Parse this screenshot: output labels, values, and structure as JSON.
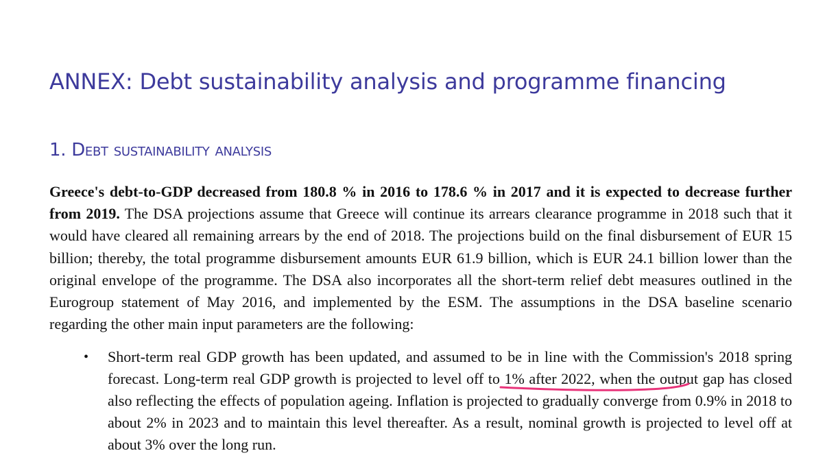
{
  "document": {
    "annex_title": "ANNEX: Debt sustainability analysis and programme financing",
    "section": {
      "number": "1.",
      "title": "Debt sustainability analysis"
    },
    "paragraph": {
      "bold_lead": "Greece's debt-to-GDP decreased from 180.8 % in 2016 to 178.6 % in 2017 and it is expected to decrease further from 2019.",
      "text": " The DSA projections assume that Greece will continue its arrears clearance programme in 2018 such that it would have cleared all remaining arrears by the end of 2018. The projections build on the final disbursement of EUR 15 billion; thereby, the total programme disbursement amounts EUR 61.9 billion, which is EUR 24.1 billion lower than the original envelope of the programme. The DSA also incorporates all the short-term relief debt measures outlined in the Eurogroup statement of May 2016, and implemented by the ESM. The assumptions in the DSA baseline scenario regarding the other main input parameters are the following:"
    },
    "bullets": [
      {
        "marker": "•",
        "text_before": "Short-term real GDP growth has been updated, and assumed to be in line with the Commission's 2018 spring forecast. Long-term real GDP growth is projected to ",
        "highlighted": "level off to 1% after 2022",
        "text_after": ", when the output gap has closed also reflecting the effects of population ageing. Inflation is projected to gradually converge from 0.9% in 2018 to about 2% in 2023 and to maintain this level thereafter. As a result, nominal growth is projected to level off at about 3% over the long run."
      }
    ]
  },
  "annotation": {
    "type": "hand-drawn-underline",
    "color": "#e8347a"
  },
  "colors": {
    "heading": "#3d3a9c",
    "body_text": "#111111",
    "background": "#ffffff"
  }
}
